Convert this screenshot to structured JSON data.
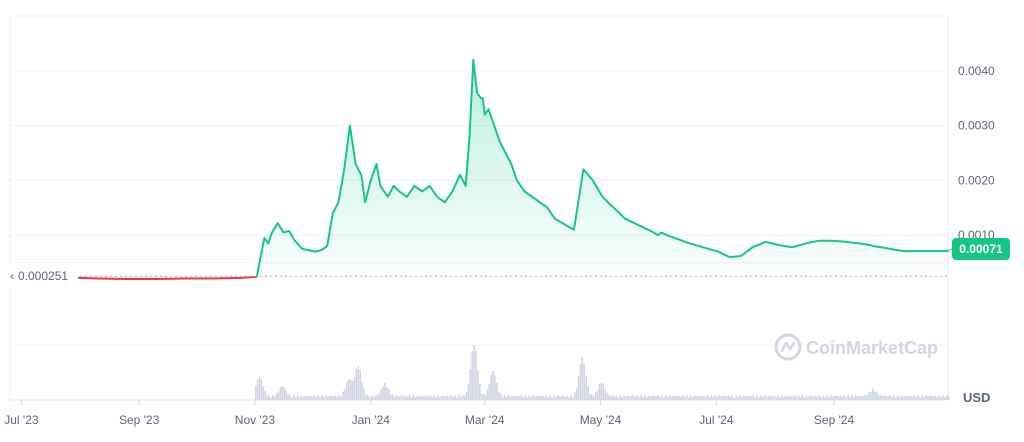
{
  "chart_data": {
    "type": "area",
    "title": "",
    "xlabel": "",
    "ylabel": "",
    "currency_label": "USD",
    "watermark": "CoinMarketCap",
    "x_ticks": [
      "Jul '23",
      "Sep '23",
      "Nov '23",
      "Jan '24",
      "Mar '24",
      "May '24",
      "Jul '24",
      "Sep '24"
    ],
    "y_ticks": [
      "0.0010",
      "0.0020",
      "0.0030",
      "0.0040"
    ],
    "y_tick_values": [
      0.001,
      0.002,
      0.003,
      0.004
    ],
    "ylim": [
      0,
      0.005
    ],
    "xlim": [
      "2023-06-25",
      "2024-10-31"
    ],
    "baseline": {
      "value": 0.000251,
      "label": "0.000251"
    },
    "current": {
      "value": 0.00071,
      "label": "0.00071"
    },
    "grid": true,
    "colors": {
      "up": "#16c784",
      "down": "#ea3943",
      "text": "#58667e",
      "grid": "#eff2f5",
      "volume": "#cfd6e4"
    },
    "series": [
      {
        "x": [
          "2023-07-12",
          "2023-07-25",
          "2023-08-10",
          "2023-08-25",
          "2023-09-10",
          "2023-09-25",
          "2023-10-10",
          "2023-10-25",
          "2023-11-02",
          "2023-11-04",
          "2023-11-06",
          "2023-11-08",
          "2023-11-10",
          "2023-11-13",
          "2023-11-16",
          "2023-11-19",
          "2023-11-22",
          "2023-11-26",
          "2023-11-30",
          "2023-12-03",
          "2023-12-06",
          "2023-12-09",
          "2023-12-12",
          "2023-12-15",
          "2023-12-18",
          "2023-12-21",
          "2023-12-24",
          "2023-12-27",
          "2023-12-29",
          "2024-01-01",
          "2024-01-04",
          "2024-01-06",
          "2024-01-08",
          "2024-01-10",
          "2024-01-13",
          "2024-01-16",
          "2024-01-20",
          "2024-01-24",
          "2024-01-28",
          "2024-02-01",
          "2024-02-05",
          "2024-02-09",
          "2024-02-13",
          "2024-02-17",
          "2024-02-20",
          "2024-02-22",
          "2024-02-24",
          "2024-02-26",
          "2024-02-28",
          "2024-02-29",
          "2024-03-01",
          "2024-03-03",
          "2024-03-06",
          "2024-03-09",
          "2024-03-12",
          "2024-03-15",
          "2024-03-18",
          "2024-03-22",
          "2024-03-26",
          "2024-03-30",
          "2024-04-03",
          "2024-04-07",
          "2024-04-12",
          "2024-04-17",
          "2024-04-22",
          "2024-04-27",
          "2024-05-02",
          "2024-05-08",
          "2024-05-14",
          "2024-05-20",
          "2024-05-26",
          "2024-05-29",
          "2024-05-31",
          "2024-06-02",
          "2024-06-05",
          "2024-06-09",
          "2024-06-13",
          "2024-06-17",
          "2024-06-22",
          "2024-06-27",
          "2024-07-02",
          "2024-07-08",
          "2024-07-14",
          "2024-07-20",
          "2024-07-27",
          "2024-08-03",
          "2024-08-10",
          "2024-08-17",
          "2024-08-24",
          "2024-08-31",
          "2024-09-07",
          "2024-09-14",
          "2024-09-20",
          "2024-09-22",
          "2024-09-26",
          "2024-10-02",
          "2024-10-08",
          "2024-10-14",
          "2024-10-20",
          "2024-10-26",
          "2024-10-31"
        ],
        "values": [
          0.00025,
          0.00023,
          0.00021,
          0.0002,
          0.0002,
          0.00021,
          0.00021,
          0.00022,
          0.00024,
          0.0006,
          0.00095,
          0.00085,
          0.00105,
          0.00122,
          0.00105,
          0.00108,
          0.0009,
          0.00075,
          0.00072,
          0.0007,
          0.00073,
          0.0008,
          0.0014,
          0.0016,
          0.0022,
          0.003,
          0.0023,
          0.0021,
          0.0016,
          0.002,
          0.0023,
          0.0019,
          0.0018,
          0.0017,
          0.0019,
          0.0018,
          0.0017,
          0.0019,
          0.0018,
          0.0019,
          0.0017,
          0.0016,
          0.0018,
          0.0021,
          0.0019,
          0.0028,
          0.0042,
          0.0036,
          0.0035,
          0.0035,
          0.0032,
          0.0033,
          0.003,
          0.0027,
          0.0025,
          0.0023,
          0.002,
          0.0018,
          0.0017,
          0.0016,
          0.0015,
          0.0013,
          0.0012,
          0.0011,
          0.0022,
          0.002,
          0.0017,
          0.0015,
          0.0013,
          0.0012,
          0.0011,
          0.00105,
          0.001,
          0.00105,
          0.001,
          0.00095,
          0.0009,
          0.00085,
          0.0008,
          0.00075,
          0.0007,
          0.0006,
          0.00062,
          0.00078,
          0.00088,
          0.00082,
          0.00078,
          0.00085,
          0.0009,
          0.0009,
          0.00088,
          0.00085,
          0.00082,
          0.0008,
          0.00078,
          0.00074,
          0.00071,
          0.00071,
          0.00071,
          0.00071,
          0.00071
        ]
      }
    ],
    "volume_peaks": [
      {
        "x": "2023-11-03",
        "h": 0.35
      },
      {
        "x": "2023-11-15",
        "h": 0.18
      },
      {
        "x": "2023-12-25",
        "h": 0.55
      },
      {
        "x": "2023-12-20",
        "h": 0.3
      },
      {
        "x": "2024-01-08",
        "h": 0.22
      },
      {
        "x": "2024-02-24",
        "h": 0.95
      },
      {
        "x": "2024-03-05",
        "h": 0.45
      },
      {
        "x": "2024-04-21",
        "h": 0.7
      },
      {
        "x": "2024-05-01",
        "h": 0.25
      },
      {
        "x": "2024-09-21",
        "h": 0.12
      }
    ]
  }
}
